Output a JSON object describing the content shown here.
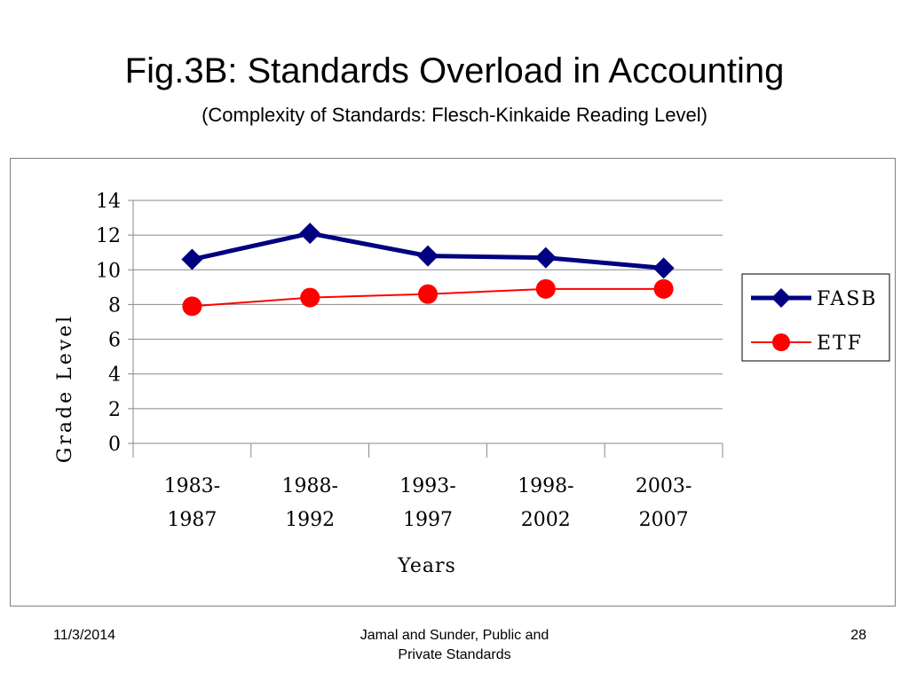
{
  "title": "Fig.3B: Standards Overload in Accounting",
  "subtitle": "(Complexity of Standards: Flesch-Kinkaide Reading Level)",
  "footer": {
    "date": "11/3/2014",
    "source_line1": "Jamal and Sunder, Public and",
    "source_line2": "Private Standards",
    "page": "28"
  },
  "chart_data": {
    "type": "line",
    "categories": [
      [
        "1983-",
        "1987"
      ],
      [
        "1988-",
        "1992"
      ],
      [
        "1993-",
        "1997"
      ],
      [
        "1998-",
        "2002"
      ],
      [
        "2003-",
        "2007"
      ]
    ],
    "series": [
      {
        "name": "FASB",
        "values": [
          10.6,
          12.1,
          10.8,
          10.7,
          10.1
        ],
        "color": "#000080",
        "marker": "diamond"
      },
      {
        "name": "ETF",
        "values": [
          7.9,
          8.4,
          8.6,
          8.9,
          8.9
        ],
        "color": "#ff0000",
        "marker": "circle"
      }
    ],
    "xlabel": "Years",
    "ylabel": "Grade Level",
    "ylim": [
      0,
      14
    ],
    "yticks": [
      "0",
      "2",
      "4",
      "6",
      "8",
      "10",
      "12",
      "14"
    ],
    "grid": true,
    "legend": "right"
  }
}
